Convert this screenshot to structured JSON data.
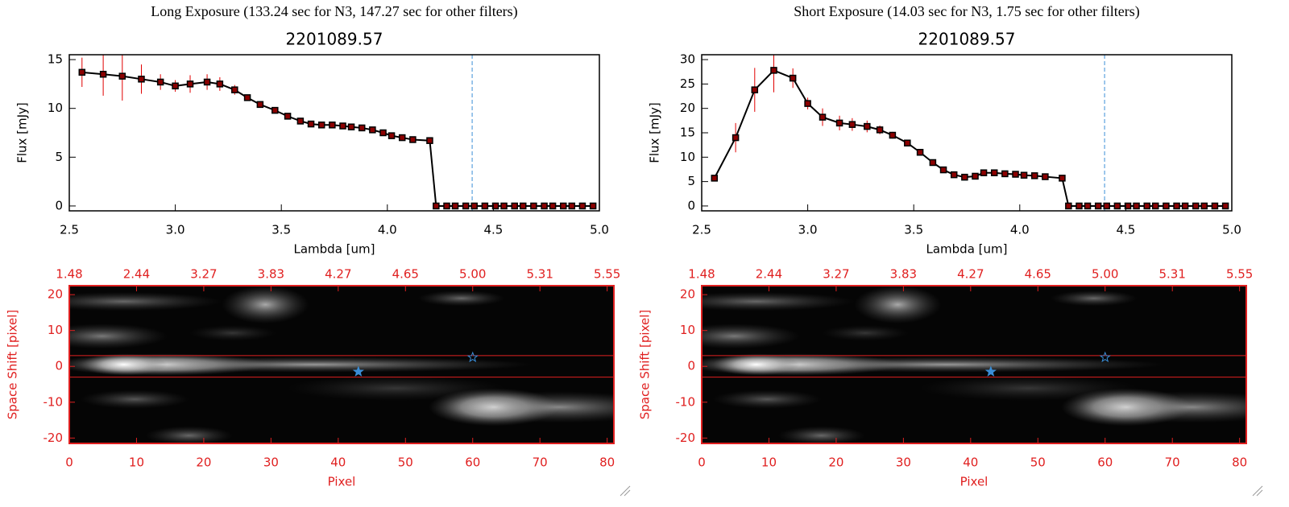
{
  "chart_data": [
    {
      "type": "line",
      "title": "Long Exposure (133.24 sec for N3, 147.27 sec for other filters)",
      "subtitle": "2201089.57",
      "xlabel": "Lambda [um]",
      "ylabel": "Flux [mJy]",
      "x": [
        2.56,
        2.66,
        2.75,
        2.84,
        2.93,
        3.0,
        3.07,
        3.15,
        3.21,
        3.28,
        3.34,
        3.4,
        3.47,
        3.53,
        3.59,
        3.64,
        3.69,
        3.74,
        3.79,
        3.83,
        3.88,
        3.93,
        3.98,
        4.02,
        4.07,
        4.12,
        4.2,
        4.23,
        4.28,
        4.32,
        4.37,
        4.41,
        4.46,
        4.51,
        4.55,
        4.6,
        4.64,
        4.69,
        4.74,
        4.78,
        4.83,
        4.87,
        4.92,
        4.97
      ],
      "values": [
        13.7,
        13.5,
        13.3,
        13.0,
        12.7,
        12.3,
        12.5,
        12.7,
        12.5,
        11.9,
        11.1,
        10.4,
        9.8,
        9.2,
        8.7,
        8.4,
        8.3,
        8.3,
        8.2,
        8.1,
        8.0,
        7.8,
        7.5,
        7.2,
        7.0,
        6.8,
        6.7,
        0,
        0,
        0,
        0,
        0,
        0,
        0,
        0,
        0,
        0,
        0,
        0,
        0,
        0,
        0,
        0,
        0
      ],
      "errors": [
        1.5,
        2.2,
        2.5,
        1.5,
        0.8,
        0.6,
        0.9,
        0.8,
        0.7,
        0.5,
        0.3,
        0.2,
        0.2,
        0.2,
        0.2,
        0.2,
        0.2,
        0.2,
        0.2,
        0.2,
        0.2,
        0.2,
        0.2,
        0.2,
        0.2,
        0.2,
        0.2,
        0,
        0,
        0,
        0,
        0,
        0,
        0,
        0,
        0,
        0,
        0,
        0,
        0,
        0,
        0,
        0,
        0
      ],
      "color": "#000000",
      "marker_color": "#8b0000",
      "error_color": "#e00000",
      "vline": 4.4,
      "vline_color": "#3a8ed8",
      "xlim": [
        2.5,
        5.0
      ],
      "ylim": [
        -0.5,
        15.5
      ],
      "xticks": [
        2.5,
        {
          "value": 3,
          "label": "3.0"
        },
        3.5,
        {
          "value": 4,
          "label": "4.0"
        },
        4.5,
        {
          "value": 5,
          "label": "5.0"
        }
      ],
      "yticks": [
        0,
        5,
        10,
        15
      ]
    },
    {
      "type": "line",
      "title": "Short Exposure (14.03 sec for N3, 1.75 sec for other filters)",
      "subtitle": "2201089.57",
      "xlabel": "Lambda [um]",
      "ylabel": "Flux [mJy]",
      "x": [
        2.56,
        2.66,
        2.75,
        2.84,
        2.93,
        3.0,
        3.07,
        3.15,
        3.21,
        3.28,
        3.34,
        3.4,
        3.47,
        3.53,
        3.59,
        3.64,
        3.69,
        3.74,
        3.79,
        3.83,
        3.88,
        3.93,
        3.98,
        4.02,
        4.07,
        4.12,
        4.2,
        4.23,
        4.28,
        4.32,
        4.37,
        4.41,
        4.46,
        4.51,
        4.55,
        4.6,
        4.64,
        4.69,
        4.74,
        4.78,
        4.83,
        4.87,
        4.92,
        4.97
      ],
      "values": [
        5.7,
        14,
        23.8,
        27.8,
        26.2,
        21,
        18.2,
        17,
        16.7,
        16.3,
        15.6,
        14.5,
        12.9,
        11,
        8.9,
        7.4,
        6.4,
        5.9,
        6.1,
        6.8,
        6.8,
        6.6,
        6.5,
        6.3,
        6.2,
        6.0,
        5.7,
        0,
        0,
        0,
        0,
        0,
        0,
        0,
        0,
        0,
        0,
        0,
        0,
        0,
        0,
        0,
        0,
        0
      ],
      "errors": [
        0.5,
        3,
        4.5,
        4.5,
        2,
        1.2,
        1.8,
        1.5,
        1.3,
        1.2,
        0.9,
        0.7,
        0.5,
        0.4,
        0.3,
        0.3,
        0.3,
        0.3,
        0.3,
        0.3,
        0.3,
        0.3,
        0.3,
        0.3,
        0.3,
        0.3,
        0.3,
        0,
        0,
        0,
        0,
        0,
        0,
        0,
        0,
        0,
        0,
        0,
        0,
        0,
        0,
        0,
        0,
        0
      ],
      "color": "#000000",
      "marker_color": "#8b0000",
      "error_color": "#e00000",
      "vline": 4.4,
      "vline_color": "#3a8ed8",
      "xlim": [
        2.5,
        5.0
      ],
      "ylim": [
        -1,
        31
      ],
      "xticks": [
        2.5,
        {
          "value": 3,
          "label": "3.0"
        },
        3.5,
        {
          "value": 4,
          "label": "4.0"
        },
        4.5,
        {
          "value": 5,
          "label": "5.0"
        }
      ],
      "yticks": [
        0,
        5,
        10,
        15,
        20,
        25,
        30
      ]
    },
    {
      "type": "image",
      "xlabel": "Pixel",
      "ylabel": "Space Shift [pixel]",
      "color": "#e02020",
      "xlim": [
        0,
        81
      ],
      "ylim": [
        -21.5,
        22.5
      ],
      "xticks": [
        0,
        10,
        20,
        30,
        40,
        50,
        60,
        70,
        80
      ],
      "yticks": [
        -20,
        -10,
        0,
        10,
        20
      ],
      "x2ticks": [
        {
          "value": 0,
          "label": "1.48"
        },
        {
          "value": 10,
          "label": "2.44"
        },
        {
          "value": 20,
          "label": "3.27"
        },
        {
          "value": 30,
          "label": "3.83"
        },
        {
          "value": 40,
          "label": "4.27"
        },
        {
          "value": 50,
          "label": "4.65"
        },
        {
          "value": 60,
          "label": "5.00"
        },
        {
          "value": 70,
          "label": "5.31"
        },
        {
          "value": 80,
          "label": "5.55"
        }
      ],
      "hlines": [
        3,
        -3
      ],
      "markers_x": [
        43,
        60
      ],
      "markers_y": [
        -1.5,
        2.5
      ],
      "marker_color": "#3a8ed8"
    },
    {
      "type": "image",
      "xlabel": "Pixel",
      "ylabel": "Space Shift [pixel]",
      "color": "#e02020",
      "xlim": [
        0,
        81
      ],
      "ylim": [
        -21.5,
        22.5
      ],
      "xticks": [
        0,
        10,
        20,
        30,
        40,
        50,
        60,
        70,
        80
      ],
      "yticks": [
        -20,
        -10,
        0,
        10,
        20
      ],
      "x2ticks": [
        {
          "value": 0,
          "label": "1.48"
        },
        {
          "value": 10,
          "label": "2.44"
        },
        {
          "value": 20,
          "label": "3.27"
        },
        {
          "value": 30,
          "label": "3.83"
        },
        {
          "value": 40,
          "label": "4.27"
        },
        {
          "value": 50,
          "label": "4.65"
        },
        {
          "value": 60,
          "label": "5.00"
        },
        {
          "value": 70,
          "label": "5.31"
        },
        {
          "value": 80,
          "label": "5.55"
        }
      ],
      "hlines": [
        3,
        -3
      ],
      "markers_x": [
        43,
        60
      ],
      "markers_y": [
        -1.5,
        2.5
      ],
      "marker_color": "#3a8ed8"
    }
  ]
}
